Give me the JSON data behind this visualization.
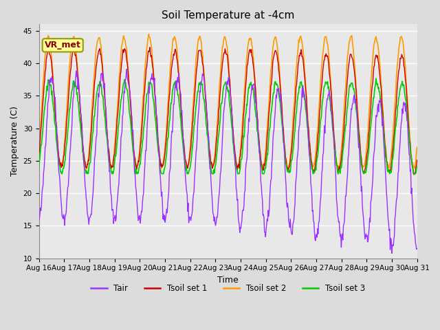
{
  "title": "Soil Temperature at -4cm",
  "xlabel": "Time",
  "ylabel": "Temperature (C)",
  "ylim": [
    10,
    46
  ],
  "yticks": [
    10,
    15,
    20,
    25,
    30,
    35,
    40,
    45
  ],
  "annotation_text": "VR_met",
  "colors": {
    "Tair": "#9B30FF",
    "Tsoil_set1": "#CC0000",
    "Tsoil_set2": "#FF9900",
    "Tsoil_set3": "#00CC00"
  },
  "legend_labels": [
    "Tair",
    "Tsoil set 1",
    "Tsoil set 2",
    "Tsoil set 3"
  ],
  "n_days": 15,
  "points_per_day": 48,
  "start_day": 16,
  "x_tick_labels": [
    "Aug 16",
    "Aug 17",
    "Aug 18",
    "Aug 19",
    "Aug 20",
    "Aug 21",
    "Aug 22",
    "Aug 23",
    "Aug 24",
    "Aug 25",
    "Aug 26",
    "Aug 27",
    "Aug 28",
    "Aug 29",
    "Aug 30",
    "Aug 31"
  ]
}
